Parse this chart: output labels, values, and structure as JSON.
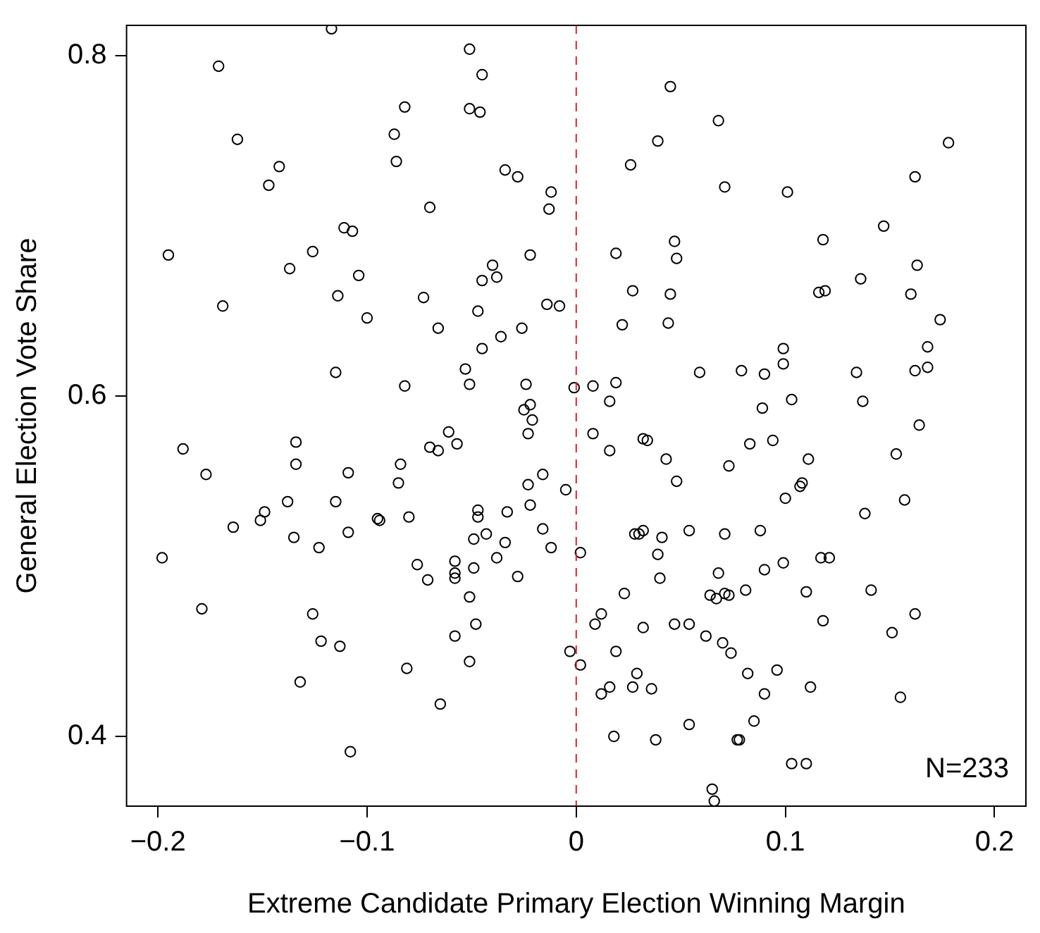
{
  "chart_data": {
    "type": "scatter",
    "xlabel": "Extreme Candidate Primary Election Winning Margin",
    "ylabel": "General Election Vote Share",
    "annotations": [
      "N=233"
    ],
    "marker": "circle",
    "xlim": [
      -0.215,
      0.215
    ],
    "ylim": [
      0.359,
      0.818
    ],
    "xticks": [
      {
        "value": -0.2,
        "label": "−0.2"
      },
      {
        "value": -0.1,
        "label": "−0.1"
      },
      0,
      0.1,
      0.2
    ],
    "yticks": [
      0.4,
      0.6,
      0.8
    ],
    "ref_lines": [
      {
        "axis": "x",
        "value": 0,
        "color": "#d62728",
        "line_style": "dashed"
      }
    ],
    "series": [
      {
        "color": "#000000",
        "x": [
          -0.117,
          -0.171,
          -0.162,
          -0.142,
          -0.147,
          -0.082,
          -0.087,
          -0.086,
          -0.07,
          -0.111,
          -0.107,
          -0.195,
          -0.126,
          -0.137,
          -0.104,
          -0.114,
          -0.169,
          -0.073,
          -0.1,
          -0.066,
          -0.115,
          -0.082,
          -0.051,
          -0.045,
          -0.051,
          -0.046,
          0.045,
          0.068,
          0.039,
          0.026,
          0.071,
          -0.034,
          -0.028,
          -0.012,
          -0.013,
          0.047,
          0.048,
          0.019,
          -0.022,
          -0.04,
          -0.045,
          -0.038,
          0.027,
          0.045,
          -0.014,
          -0.008,
          -0.047,
          0.022,
          0.044,
          -0.026,
          -0.036,
          -0.045,
          -0.053,
          0.059,
          -0.051,
          -0.024,
          -0.001,
          0.008,
          0.019,
          0.016,
          -0.025,
          -0.022,
          0.178,
          0.162,
          0.101,
          0.147,
          0.118,
          0.163,
          0.136,
          0.116,
          0.119,
          0.16,
          0.174,
          0.168,
          0.099,
          0.099,
          0.079,
          0.09,
          0.134,
          0.162,
          0.168,
          0.089,
          0.103,
          0.137,
          -0.188,
          -0.177,
          -0.134,
          -0.134,
          -0.109,
          -0.084,
          -0.085,
          -0.07,
          -0.138,
          -0.115,
          -0.149,
          -0.151,
          -0.164,
          -0.095,
          -0.094,
          -0.08,
          -0.135,
          -0.109,
          -0.123,
          -0.198,
          -0.076,
          -0.071,
          -0.179,
          -0.126,
          -0.122,
          -0.113,
          -0.081,
          -0.132,
          -0.108,
          -0.021,
          -0.023,
          -0.061,
          -0.066,
          -0.057,
          0.008,
          0.016,
          0.032,
          0.034,
          0.043,
          0.073,
          0.048,
          -0.023,
          -0.016,
          -0.005,
          -0.047,
          -0.047,
          -0.033,
          -0.022,
          -0.049,
          -0.043,
          -0.034,
          -0.016,
          -0.012,
          -0.038,
          -0.058,
          -0.058,
          -0.058,
          -0.049,
          -0.028,
          0.002,
          0.028,
          0.03,
          0.032,
          0.041,
          0.054,
          0.071,
          0.039,
          0.04,
          0.068,
          -0.051,
          0.023,
          0.064,
          0.067,
          0.071,
          0.073,
          -0.048,
          -0.058,
          0.012,
          0.009,
          0.032,
          0.047,
          0.054,
          0.062,
          0.07,
          0.074,
          -0.051,
          -0.003,
          0.002,
          0.019,
          0.029,
          0.012,
          0.016,
          0.027,
          0.036,
          -0.065,
          0.018,
          0.038,
          0.054,
          0.065,
          0.066,
          0.164,
          0.083,
          0.094,
          0.111,
          0.153,
          0.108,
          0.107,
          0.1,
          0.157,
          0.138,
          0.088,
          0.117,
          0.121,
          0.099,
          0.09,
          0.081,
          0.11,
          0.141,
          0.162,
          0.118,
          0.151,
          0.082,
          0.096,
          0.09,
          0.112,
          0.155,
          0.085,
          0.077,
          0.078,
          0.103,
          0.11
        ],
        "values": [
          0.816,
          0.794,
          0.751,
          0.735,
          0.724,
          0.77,
          0.754,
          0.738,
          0.711,
          0.699,
          0.697,
          0.683,
          0.685,
          0.675,
          0.671,
          0.659,
          0.653,
          0.658,
          0.646,
          0.64,
          0.614,
          0.606,
          0.804,
          0.789,
          0.769,
          0.767,
          0.782,
          0.762,
          0.75,
          0.736,
          0.723,
          0.733,
          0.729,
          0.72,
          0.71,
          0.691,
          0.681,
          0.684,
          0.683,
          0.677,
          0.668,
          0.67,
          0.662,
          0.66,
          0.654,
          0.653,
          0.65,
          0.642,
          0.643,
          0.64,
          0.635,
          0.628,
          0.616,
          0.614,
          0.607,
          0.607,
          0.605,
          0.606,
          0.608,
          0.597,
          0.592,
          0.595,
          0.749,
          0.729,
          0.72,
          0.7,
          0.692,
          0.677,
          0.669,
          0.661,
          0.662,
          0.66,
          0.645,
          0.629,
          0.628,
          0.619,
          0.615,
          0.613,
          0.614,
          0.615,
          0.617,
          0.593,
          0.598,
          0.597,
          0.569,
          0.554,
          0.573,
          0.56,
          0.555,
          0.56,
          0.549,
          0.57,
          0.538,
          0.538,
          0.532,
          0.527,
          0.523,
          0.528,
          0.527,
          0.529,
          0.517,
          0.52,
          0.511,
          0.505,
          0.501,
          0.492,
          0.475,
          0.472,
          0.456,
          0.453,
          0.44,
          0.432,
          0.391,
          0.586,
          0.578,
          0.579,
          0.568,
          0.572,
          0.578,
          0.568,
          0.575,
          0.574,
          0.563,
          0.559,
          0.55,
          0.548,
          0.554,
          0.545,
          0.533,
          0.529,
          0.532,
          0.536,
          0.516,
          0.519,
          0.514,
          0.522,
          0.511,
          0.505,
          0.503,
          0.496,
          0.493,
          0.499,
          0.494,
          0.508,
          0.519,
          0.519,
          0.521,
          0.517,
          0.521,
          0.519,
          0.507,
          0.493,
          0.496,
          0.482,
          0.484,
          0.483,
          0.481,
          0.484,
          0.483,
          0.466,
          0.459,
          0.472,
          0.466,
          0.464,
          0.466,
          0.466,
          0.459,
          0.455,
          0.449,
          0.444,
          0.45,
          0.442,
          0.45,
          0.437,
          0.425,
          0.429,
          0.429,
          0.428,
          0.419,
          0.4,
          0.398,
          0.407,
          0.369,
          0.362,
          0.583,
          0.572,
          0.574,
          0.563,
          0.566,
          0.549,
          0.547,
          0.54,
          0.539,
          0.531,
          0.521,
          0.505,
          0.505,
          0.502,
          0.498,
          0.486,
          0.485,
          0.486,
          0.472,
          0.468,
          0.461,
          0.437,
          0.439,
          0.425,
          0.429,
          0.423,
          0.409,
          0.398,
          0.398,
          0.384,
          0.384
        ]
      }
    ]
  }
}
